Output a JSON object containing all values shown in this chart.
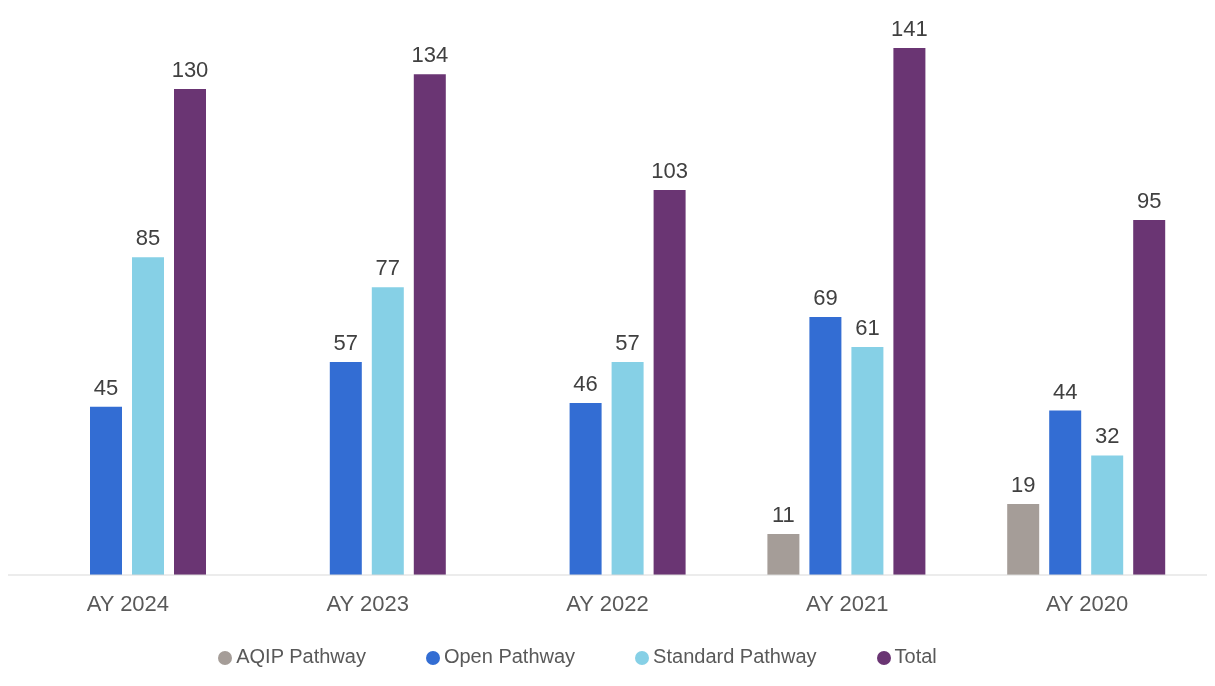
{
  "chart_data": {
    "type": "bar",
    "categories": [
      "AY 2024",
      "AY 2023",
      "AY 2022",
      "AY 2021",
      "AY 2020"
    ],
    "series": [
      {
        "name": "AQIP Pathway",
        "color": "#a59d98",
        "values": [
          null,
          null,
          null,
          11,
          19
        ]
      },
      {
        "name": "Open Pathway",
        "color": "#336dd3",
        "values": [
          45,
          57,
          46,
          69,
          44
        ]
      },
      {
        "name": "Standard Pathway",
        "color": "#86d0e6",
        "values": [
          85,
          77,
          57,
          61,
          32
        ]
      },
      {
        "name": "Total",
        "color": "#6a3573",
        "values": [
          130,
          134,
          103,
          141,
          95
        ]
      }
    ],
    "data_labels": true,
    "legend": "bottom",
    "grid": false
  }
}
